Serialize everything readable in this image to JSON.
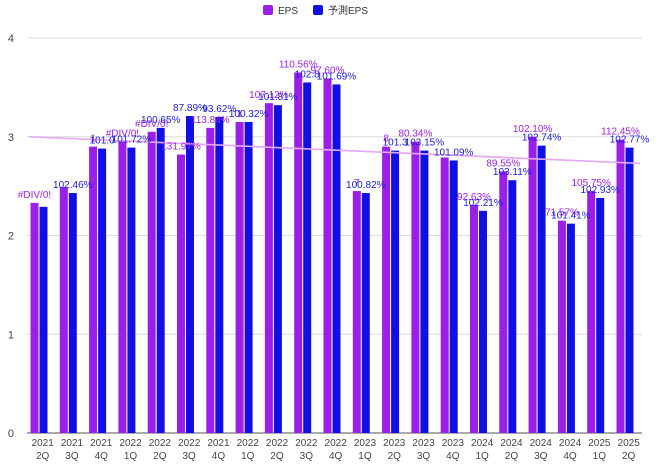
{
  "colors": {
    "eps": "#9b1fe8",
    "forecast": "#1010e6",
    "trend": "#e3a6f3",
    "grid": "#dcdcdc",
    "axis_text": "#444444",
    "label_eps": "#a020f0",
    "label_forecast": "#1a1ae0"
  },
  "chart_data": {
    "type": "bar",
    "title": "",
    "xlabel": "",
    "ylabel": "",
    "ylim": [
      0,
      4
    ],
    "yticks": [
      "0",
      "1",
      "2",
      "3",
      "4"
    ],
    "grid": true,
    "legend_position": "top-center",
    "legend": [
      "EPS",
      "予測EPS"
    ],
    "categories": [
      [
        "2021",
        "2Q"
      ],
      [
        "2021",
        "3Q"
      ],
      [
        "2021",
        "4Q"
      ],
      [
        "2022",
        "1Q"
      ],
      [
        "2022",
        "2Q"
      ],
      [
        "2022",
        "3Q"
      ],
      [
        "2021",
        "4Q"
      ],
      [
        "2022",
        "1Q"
      ],
      [
        "2022",
        "2Q"
      ],
      [
        "2022",
        "3Q"
      ],
      [
        "2022",
        "4Q"
      ],
      [
        "2023",
        "1Q"
      ],
      [
        "2023",
        "2Q"
      ],
      [
        "2023",
        "3Q"
      ],
      [
        "2023",
        "4Q"
      ],
      [
        "2024",
        "1Q"
      ],
      [
        "2024",
        "2Q"
      ],
      [
        "2024",
        "3Q"
      ],
      [
        "2024",
        "4Q"
      ],
      [
        "2025",
        "1Q"
      ],
      [
        "2025",
        "2Q"
      ]
    ],
    "series": [
      {
        "name": "EPS",
        "values": [
          2.33,
          2.49,
          2.9,
          2.95,
          3.05,
          2.82,
          3.09,
          3.15,
          3.34,
          3.65,
          3.59,
          2.45,
          2.9,
          2.95,
          2.79,
          2.31,
          2.65,
          3.0,
          2.15,
          2.45,
          2.97
        ],
        "labels": [
          "#DIV/0!",
          "",
          "1",
          "#DIV/0!",
          "#DIV/0!",
          "131.97%",
          "113.84%",
          "1",
          "107.12%",
          "110.56%",
          "97.60%",
          "7",
          "8",
          "80.34%",
          "",
          "92.63%",
          "89.55%",
          "102.10%",
          "71.57%",
          "105.75%",
          "112.45%"
        ]
      },
      {
        "name": "予測EPS",
        "values": [
          2.29,
          2.43,
          2.88,
          2.89,
          3.09,
          3.21,
          3.2,
          3.15,
          3.32,
          3.55,
          3.53,
          2.43,
          2.86,
          2.86,
          2.76,
          2.25,
          2.56,
          2.91,
          2.12,
          2.38,
          2.89
        ],
        "labels": [
          "",
          "102.46%",
          "101.0",
          "101.72%",
          "100.65%",
          "87.89%",
          "93.62%",
          "100.32%",
          "101.81%",
          "102.8",
          "101.69%",
          "100.82%",
          "101.3",
          "103.15%",
          "101.09%",
          "102.21%",
          "103.11%",
          "102.74%",
          "101.41%",
          "102.93%",
          "102.77%"
        ]
      }
    ],
    "trendline": {
      "series": "EPS",
      "start": 3.0,
      "end": 2.73
    }
  }
}
